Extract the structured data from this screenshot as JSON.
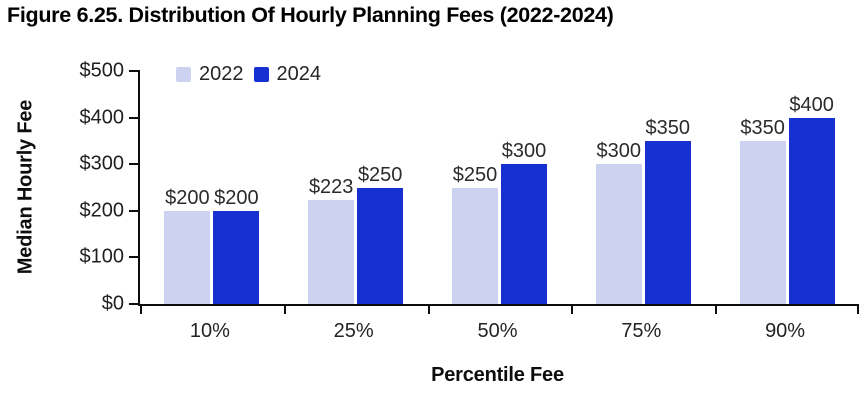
{
  "chart_data": {
    "type": "bar",
    "title": "Figure 6.25. Distribution Of Hourly Planning Fees (2022-2024)",
    "xlabel": "Percentile Fee",
    "ylabel": "Median Hourly Fee",
    "categories": [
      "10%",
      "25%",
      "50%",
      "75%",
      "90%"
    ],
    "series": [
      {
        "name": "2022",
        "color": "#cdd2f1",
        "values": [
          200,
          223,
          250,
          300,
          350
        ],
        "labels": [
          "$200",
          "$223",
          "$250",
          "$300",
          "$350"
        ]
      },
      {
        "name": "2024",
        "color": "#1730d2",
        "values": [
          200,
          250,
          300,
          350,
          400
        ],
        "labels": [
          "$200",
          "$250",
          "$300",
          "$350",
          "$400"
        ]
      }
    ],
    "ylim": [
      0,
      500
    ],
    "yticks": [
      {
        "value": 500,
        "label": "$500"
      },
      {
        "value": 400,
        "label": "$400"
      },
      {
        "value": 300,
        "label": "$300"
      },
      {
        "value": 200,
        "label": "$200"
      },
      {
        "value": 100,
        "label": "$100"
      },
      {
        "value": 0,
        "label": "$0"
      }
    ],
    "legend_position": "top-left",
    "grid": false,
    "axis_color": "#0d0d0d",
    "label_color": "#2b2b2b"
  }
}
